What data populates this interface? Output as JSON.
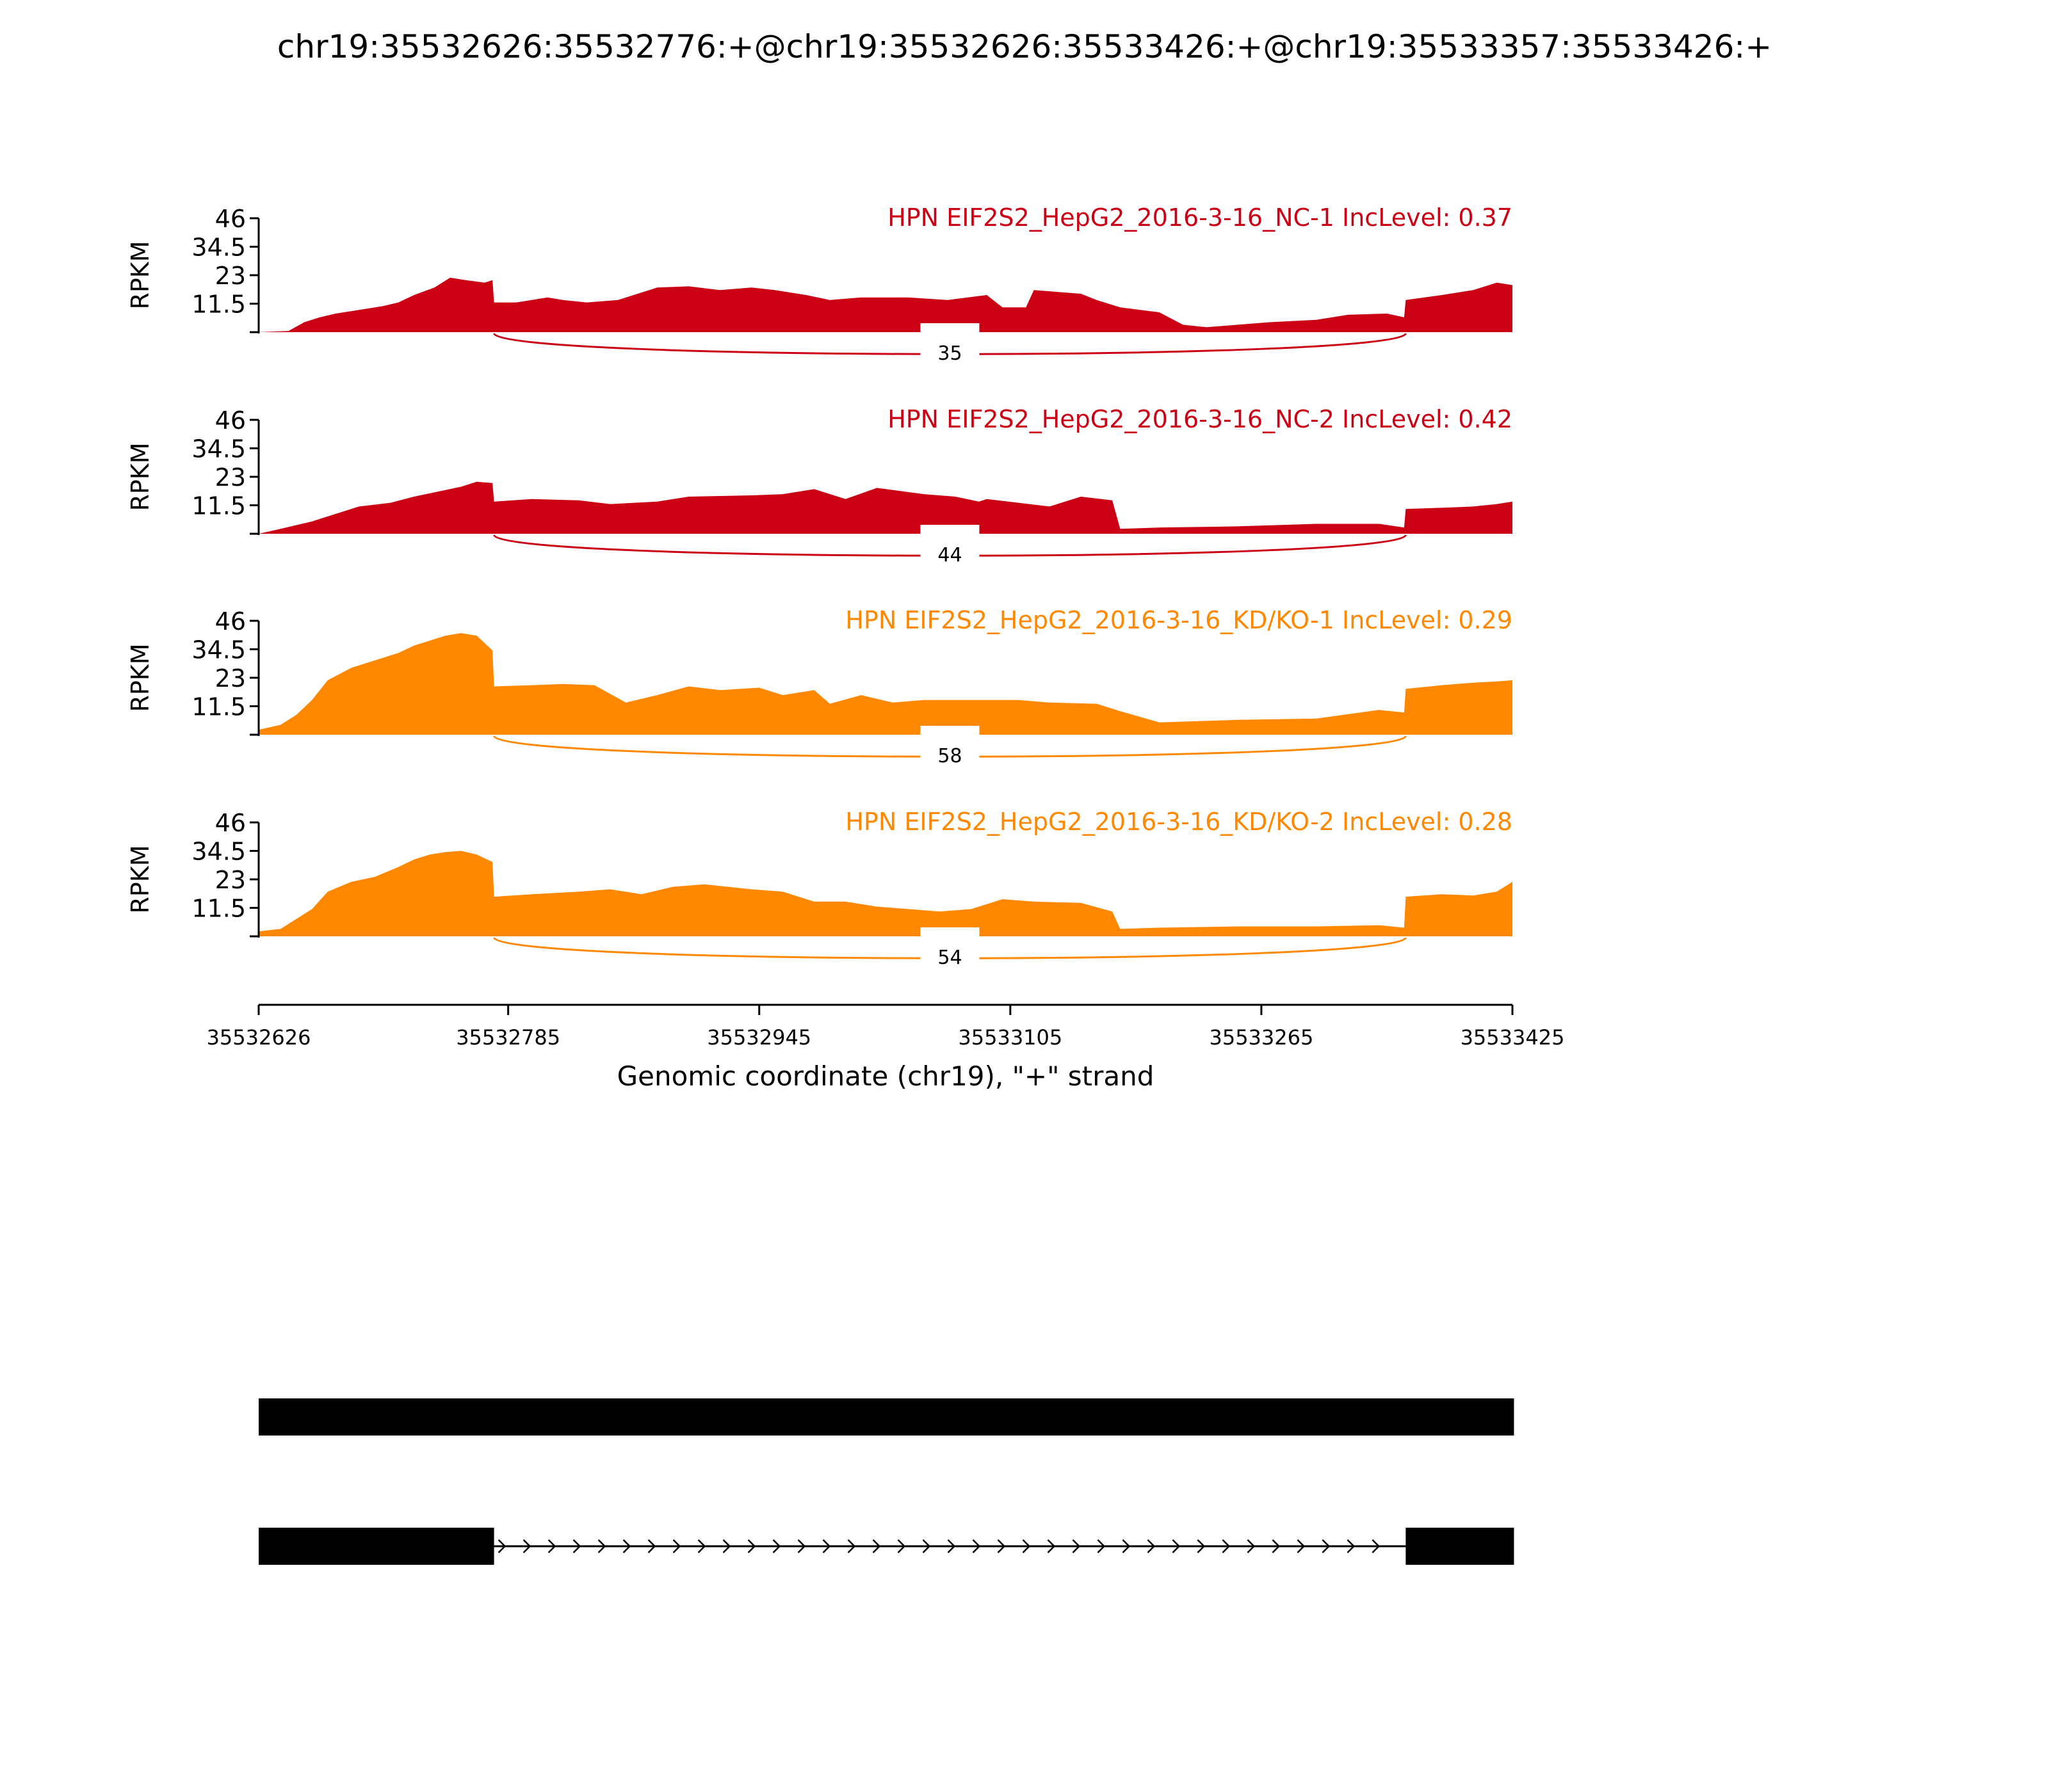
{
  "page_title": "chr19:35532626:35532776:+@chr19:35532626:35533426:+@chr19:35533357:35533426:+",
  "chart_data": {
    "type": "area",
    "title": "chr19:35532626:35532776:+@chr19:35532626:35533426:+@chr19:35533357:35533426:+",
    "xlabel": "Genomic coordinate (chr19), \"+\" strand",
    "ylabel": "RPKM",
    "xlim": [
      35532626,
      35533425
    ],
    "ylim": [
      0,
      46
    ],
    "xticks": [
      "35532626",
      "35532785",
      "35532945",
      "35533105",
      "35533265",
      "35533425"
    ],
    "yticks": [
      "11.5",
      "23",
      "34.5",
      "46"
    ],
    "colors": {
      "NC": "#cc0015",
      "KD": "#ff8800"
    },
    "exons": {
      "upstream": [
        35532626,
        35532776
      ],
      "downstream": [
        35533357,
        35533426
      ]
    },
    "tracks": [
      {
        "name": "HPN EIF2S2_HepG2_2016-3-16_NC-1 IncLevel: 0.37",
        "color": "#cc0015",
        "junction_reads": "35",
        "x": [
          35532626,
          35532645,
          35532655,
          35532665,
          35532675,
          35532690,
          35532705,
          35532715,
          35532725,
          35532738,
          35532748,
          35532758,
          35532770,
          35532775,
          35532776,
          35532790,
          35532800,
          35532810,
          35532820,
          35532835,
          35532855,
          35532880,
          35532900,
          35532920,
          35532940,
          35532955,
          35532975,
          35532990,
          35533010,
          35533040,
          35533065,
          35533090,
          35533100,
          35533115,
          35533120,
          35533150,
          35533160,
          35533175,
          35533200,
          35533215,
          35533230,
          35533250,
          35533270,
          35533300,
          35533320,
          35533345,
          35533356,
          35533357,
          35533380,
          35533400,
          35533415,
          35533425
        ],
        "y": [
          0,
          0.5,
          4,
          6,
          7.5,
          9,
          10.5,
          12,
          15,
          18,
          22,
          21,
          20,
          21,
          12,
          12,
          13,
          14,
          13,
          12,
          13,
          18,
          18.5,
          17,
          18,
          17,
          15,
          13,
          14,
          14,
          13,
          15,
          10,
          10,
          17,
          15.5,
          13,
          10,
          8,
          3,
          2,
          3,
          4,
          5,
          7,
          7.5,
          6,
          13,
          15,
          17,
          20,
          19
        ]
      },
      {
        "name": "HPN EIF2S2_HepG2_2016-3-16_NC-2 IncLevel: 0.42",
        "color": "#cc0015",
        "junction_reads": "44",
        "x": [
          35532626,
          35532640,
          35532660,
          35532675,
          35532690,
          35532710,
          35532725,
          35532740,
          35532755,
          35532765,
          35532775,
          35532776,
          35532800,
          35532830,
          35532850,
          35532880,
          35532900,
          35532940,
          35532960,
          35532980,
          35533000,
          35533020,
          35533050,
          35533070,
          35533085,
          35533090,
          35533130,
          35533150,
          35533170,
          35533175,
          35533200,
          35533250,
          35533300,
          35533340,
          35533356,
          35533357,
          35533380,
          35533400,
          35533415,
          35533425
        ],
        "y": [
          0,
          2,
          5,
          8,
          11,
          12.5,
          15,
          17,
          19,
          21,
          20.5,
          13,
          14,
          13.5,
          12,
          13,
          15,
          15.5,
          16,
          18,
          14,
          18.5,
          16,
          15,
          13,
          14,
          11,
          15,
          13.5,
          2,
          2.5,
          3,
          4,
          4,
          2.5,
          10,
          10.5,
          11,
          12,
          13
        ]
      },
      {
        "name": "HPN EIF2S2_HepG2_2016-3-16_KD/KO-1 IncLevel: 0.29",
        "color": "#ff8800",
        "junction_reads": "58",
        "x": [
          35532626,
          35532640,
          35532650,
          35532660,
          35532670,
          35532685,
          35532700,
          35532715,
          35532725,
          35532735,
          35532745,
          35532755,
          35532765,
          35532775,
          35532776,
          35532800,
          35532820,
          35532840,
          35532860,
          35532880,
          35532900,
          35532920,
          35532945,
          35532960,
          35532980,
          35532990,
          35533010,
          35533030,
          35533050,
          35533070,
          35533090,
          35533110,
          35533130,
          35533160,
          35533175,
          35533200,
          35533250,
          35533300,
          35533340,
          35533356,
          35533357,
          35533380,
          35533400,
          35533415,
          35533425
        ],
        "y": [
          2,
          4,
          8,
          14,
          22,
          27,
          30,
          33,
          36,
          38,
          40,
          41,
          40,
          34,
          19.5,
          20,
          20.5,
          20,
          13,
          16,
          19.5,
          18,
          19,
          16,
          18,
          12.5,
          16,
          13,
          14,
          14,
          14,
          14,
          13,
          12.5,
          9.5,
          5,
          6,
          6.5,
          10,
          9,
          18.5,
          20,
          21,
          21.5,
          22
        ]
      },
      {
        "name": "HPN EIF2S2_HepG2_2016-3-16_KD/KO-2 IncLevel: 0.28",
        "color": "#ff8800",
        "junction_reads": "54",
        "x": [
          35532626,
          35532640,
          35532650,
          35532660,
          35532670,
          35532685,
          35532700,
          35532715,
          35532725,
          35532735,
          35532745,
          35532755,
          35532765,
          35532775,
          35532776,
          35532800,
          35532830,
          35532850,
          35532870,
          35532890,
          35532910,
          35532940,
          35532960,
          35532980,
          35533000,
          35533020,
          35533040,
          35533060,
          35533080,
          35533100,
          35533120,
          35533150,
          35533170,
          35533175,
          35533200,
          35533250,
          35533300,
          35533340,
          35533356,
          35533357,
          35533380,
          35533400,
          35533415,
          35533425
        ],
        "y": [
          2,
          3,
          7,
          11,
          18,
          22,
          24,
          28,
          31,
          33,
          34,
          34.5,
          33,
          30,
          16,
          17,
          18,
          19,
          17,
          20,
          21,
          19,
          18,
          14,
          14,
          12,
          11,
          10,
          11,
          15,
          14,
          13.5,
          10,
          3,
          3.5,
          4,
          4,
          4.5,
          3.5,
          16,
          17,
          16.5,
          18,
          22
        ]
      }
    ]
  }
}
